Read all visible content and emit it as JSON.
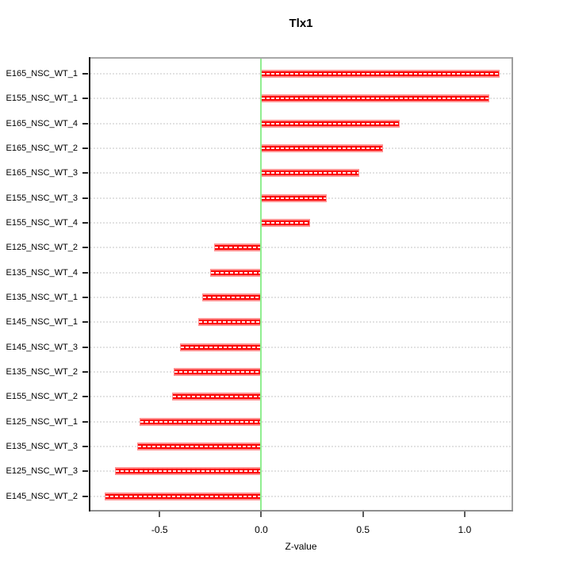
{
  "title": "Tlx1",
  "x_axis_label": "Z-value",
  "chart_data": {
    "type": "bar",
    "orientation": "horizontal",
    "title": "Tlx1",
    "xlabel": "Z-value",
    "ylabel": "",
    "categories": [
      "E165_NSC_WT_1",
      "E155_NSC_WT_1",
      "E165_NSC_WT_4",
      "E165_NSC_WT_2",
      "E165_NSC_WT_3",
      "E155_NSC_WT_3",
      "E155_NSC_WT_4",
      "E125_NSC_WT_2",
      "E135_NSC_WT_4",
      "E135_NSC_WT_1",
      "E145_NSC_WT_1",
      "E145_NSC_WT_3",
      "E135_NSC_WT_2",
      "E155_NSC_WT_2",
      "E125_NSC_WT_1",
      "E135_NSC_WT_3",
      "E125_NSC_WT_3",
      "E145_NSC_WT_2"
    ],
    "values": [
      1.17,
      1.12,
      0.68,
      0.6,
      0.48,
      0.32,
      0.24,
      -0.23,
      -0.25,
      -0.29,
      -0.31,
      -0.4,
      -0.43,
      -0.44,
      -0.6,
      -0.61,
      -0.72,
      -0.77
    ],
    "xlim": [
      -0.848,
      1.238
    ],
    "x_ticks": [
      -0.5,
      0.0,
      0.5,
      1.0
    ],
    "x_tick_labels": [
      "-0.5",
      "0.0",
      "0.5",
      "1.0"
    ],
    "grid": true,
    "legend": "none",
    "bar_color": "#ff0000",
    "bar_halo_color": "#ff9191",
    "zero_line_color": "#90ee90",
    "gridline_color": "#e2e2e2"
  }
}
